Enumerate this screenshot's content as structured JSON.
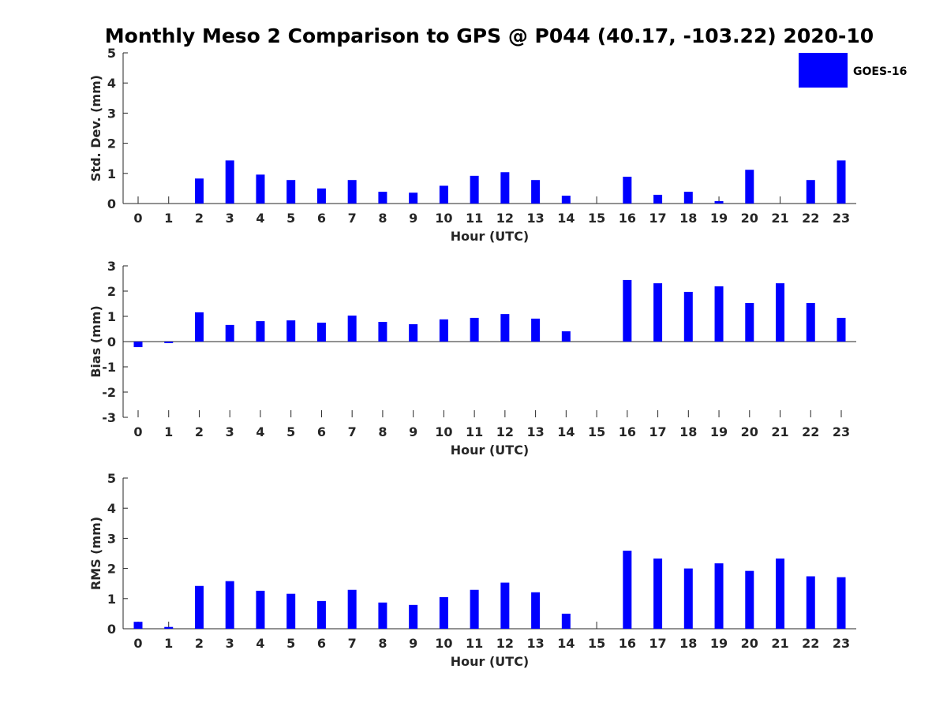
{
  "chart_data": {
    "title": "Monthly Meso 2 Comparison to GPS @ P044 (40.17, -103.22) 2020-10",
    "legend": {
      "placement": "top-right",
      "label": "GOES-16",
      "color": "#0000ff"
    },
    "bar_color": "#0000ff",
    "panels": [
      {
        "type": "bar",
        "xlabel": "Hour (UTC)",
        "ylabel": "Std. Dev. (mm)",
        "ylim": [
          0,
          5
        ],
        "yticks": [
          0,
          1,
          2,
          3,
          4,
          5
        ],
        "categories": [
          "0",
          "1",
          "2",
          "3",
          "4",
          "5",
          "6",
          "7",
          "8",
          "9",
          "10",
          "11",
          "12",
          "13",
          "14",
          "15",
          "16",
          "17",
          "18",
          "19",
          "20",
          "21",
          "22",
          "23"
        ],
        "series": [
          {
            "name": "GOES-16",
            "values": [
              0,
              0,
              0.83,
              1.43,
              0.96,
              0.78,
              0.5,
              0.78,
              0.39,
              0.36,
              0.59,
              0.92,
              1.04,
              0.78,
              0.26,
              0,
              0.89,
              0.29,
              0.39,
              0.08,
              1.12,
              0,
              0.78,
              1.43
            ]
          }
        ]
      },
      {
        "type": "bar",
        "xlabel": "Hour (UTC)",
        "ylabel": "Bias (mm)",
        "ylim": [
          -3,
          3
        ],
        "yticks": [
          -3,
          -2,
          -1,
          0,
          1,
          2,
          3
        ],
        "categories": [
          "0",
          "1",
          "2",
          "3",
          "4",
          "5",
          "6",
          "7",
          "8",
          "9",
          "10",
          "11",
          "12",
          "13",
          "14",
          "15",
          "16",
          "17",
          "18",
          "19",
          "20",
          "21",
          "22",
          "23"
        ],
        "series": [
          {
            "name": "GOES-16",
            "values": [
              -0.22,
              -0.06,
              1.16,
              0.66,
              0.81,
              0.84,
              0.75,
              1.03,
              0.78,
              0.69,
              0.88,
              0.94,
              1.09,
              0.91,
              0.41,
              0,
              2.44,
              2.31,
              1.97,
              2.19,
              1.53,
              2.31,
              1.53,
              0.94
            ]
          }
        ]
      },
      {
        "type": "bar",
        "xlabel": "Hour (UTC)",
        "ylabel": "RMS (mm)",
        "ylim": [
          0,
          5
        ],
        "yticks": [
          0,
          1,
          2,
          3,
          4,
          5
        ],
        "categories": [
          "0",
          "1",
          "2",
          "3",
          "4",
          "5",
          "6",
          "7",
          "8",
          "9",
          "10",
          "11",
          "12",
          "13",
          "14",
          "15",
          "16",
          "17",
          "18",
          "19",
          "20",
          "21",
          "22",
          "23"
        ],
        "series": [
          {
            "name": "GOES-16",
            "values": [
              0.23,
              0.06,
              1.42,
              1.58,
              1.26,
              1.16,
              0.92,
              1.29,
              0.87,
              0.79,
              1.05,
              1.29,
              1.53,
              1.21,
              0.5,
              0,
              2.59,
              2.33,
              2.0,
              2.17,
              1.92,
              2.33,
              1.74,
              1.71
            ]
          }
        ]
      }
    ]
  }
}
